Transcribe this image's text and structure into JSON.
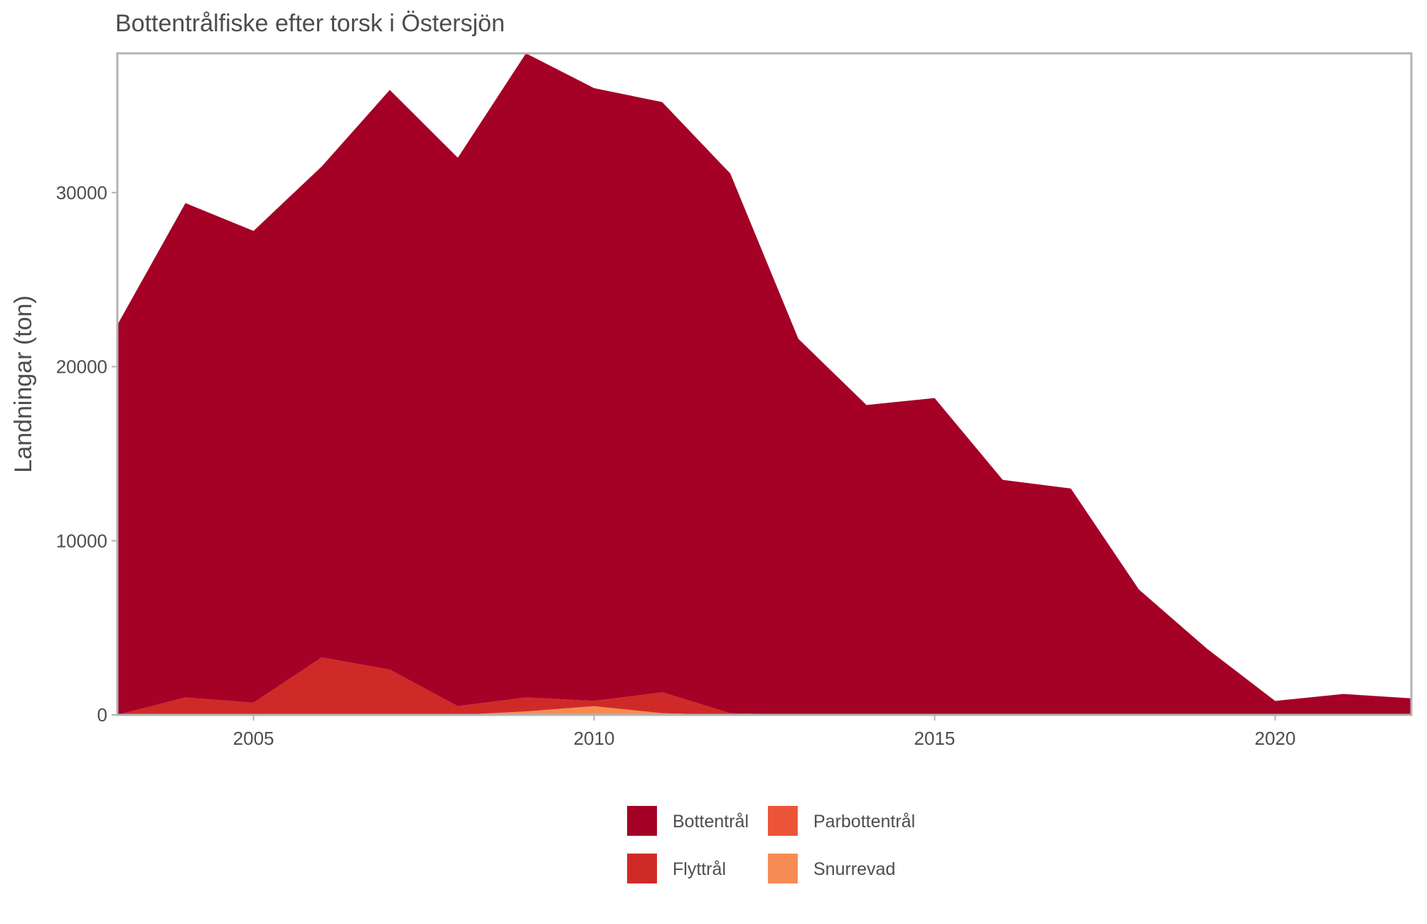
{
  "chart_data": {
    "type": "area",
    "stacked": true,
    "title": "Bottentrålfiske efter torsk i Östersjön",
    "xlabel": "",
    "ylabel": "Landningar (ton)",
    "xlim": [
      2003,
      2022
    ],
    "ylim": [
      0,
      38000
    ],
    "x_ticks": [
      2005,
      2010,
      2015,
      2020
    ],
    "y_ticks": [
      0,
      10000,
      20000,
      30000
    ],
    "grid": false,
    "legend_position": "bottom",
    "series": [
      {
        "name": "Snurrevad",
        "color": "#f68c53",
        "x": [
          2003,
          2004,
          2005,
          2006,
          2007,
          2008,
          2009,
          2010,
          2011,
          2012,
          2013,
          2014,
          2015,
          2016,
          2017,
          2018,
          2019,
          2020,
          2021,
          2022
        ],
        "values": [
          0,
          0,
          0,
          0,
          0,
          0,
          200,
          500,
          100,
          0,
          0,
          0,
          0,
          0,
          0,
          0,
          0,
          0,
          0,
          0
        ]
      },
      {
        "name": "Parbottentrål",
        "color": "#ec5537",
        "x": [
          2003,
          2004,
          2005,
          2006,
          2007,
          2008,
          2009,
          2010,
          2011,
          2012,
          2013,
          2014,
          2015,
          2016,
          2017,
          2018,
          2019,
          2020,
          2021,
          2022
        ],
        "values": [
          0,
          0,
          0,
          0,
          0,
          0,
          0,
          0,
          0,
          0,
          0,
          0,
          0,
          0,
          0,
          0,
          0,
          0,
          0,
          0
        ]
      },
      {
        "name": "Flyttrål",
        "color": "#cf2a27",
        "x": [
          2003,
          2004,
          2005,
          2006,
          2007,
          2008,
          2009,
          2010,
          2011,
          2012,
          2013,
          2014,
          2015,
          2016,
          2017,
          2018,
          2019,
          2020,
          2021,
          2022
        ],
        "values": [
          0,
          1000,
          700,
          3300,
          2600,
          500,
          800,
          300,
          1200,
          100,
          0,
          0,
          0,
          0,
          0,
          0,
          0,
          0,
          0,
          0
        ]
      },
      {
        "name": "Bottentrål",
        "color": "#a50026",
        "x": [
          2003,
          2004,
          2005,
          2006,
          2007,
          2008,
          2009,
          2010,
          2011,
          2012,
          2013,
          2014,
          2015,
          2016,
          2017,
          2018,
          2019,
          2020,
          2021,
          2022
        ],
        "values": [
          22400,
          28400,
          27100,
          28200,
          33300,
          31500,
          37000,
          35200,
          33900,
          31000,
          21600,
          17800,
          18200,
          13500,
          13000,
          7200,
          3800,
          800,
          1200,
          950
        ]
      }
    ],
    "legend": [
      {
        "name": "Bottentrål",
        "color": "#a50026"
      },
      {
        "name": "Parbottentrål",
        "color": "#ec5537"
      },
      {
        "name": "Flyttrål",
        "color": "#cf2a27"
      },
      {
        "name": "Snurrevad",
        "color": "#f68c53"
      }
    ]
  }
}
